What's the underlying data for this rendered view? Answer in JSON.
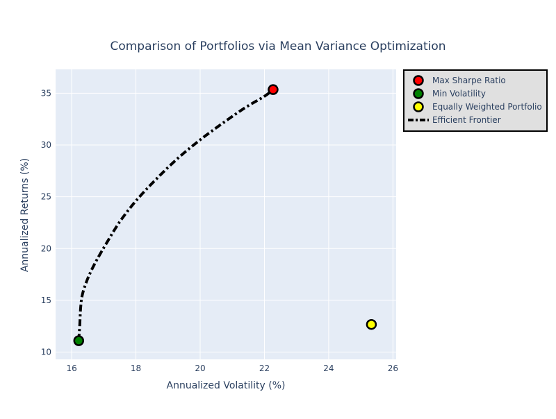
{
  "chart_data": {
    "type": "scatter",
    "title": "Comparison of Portfolios via Mean Variance Optimization",
    "xlabel": "Annualized Volatility (%)",
    "ylabel": "Annualized Returns (%)",
    "xlim": [
      15.5,
      26.1
    ],
    "ylim": [
      9.3,
      37.3
    ],
    "xticks": [
      16,
      18,
      20,
      22,
      24,
      26
    ],
    "yticks": [
      10,
      15,
      20,
      25,
      30,
      35
    ],
    "grid": true,
    "legend_position": "top-right",
    "colors": {
      "plot_background": "#e5ecf6",
      "grid": "#ffffff",
      "text": "#2a3f5f",
      "legend_background": "#e0e0e0",
      "frontier": "#000000"
    },
    "series": [
      {
        "name": "Max Sharpe Ratio",
        "mode": "markers",
        "color": "#ff0000",
        "x": [
          22.27
        ],
        "y": [
          35.35
        ]
      },
      {
        "name": "Min Volatility",
        "mode": "markers",
        "color": "#008000",
        "x": [
          16.22
        ],
        "y": [
          11.1
        ]
      },
      {
        "name": "Equally Weighted Portfolio",
        "mode": "markers",
        "color": "#ffff00",
        "x": [
          25.33
        ],
        "y": [
          12.67
        ]
      },
      {
        "name": "Efficient Frontier",
        "mode": "lines",
        "dash": "dashdot",
        "color": "#000000",
        "x": [
          16.22,
          16.25,
          16.28,
          16.33,
          16.45,
          16.6,
          16.8,
          17.1,
          17.5,
          18.0,
          18.6,
          19.3,
          20.0,
          20.7,
          21.4,
          22.0,
          22.27
        ],
        "y": [
          11.1,
          12.5,
          14.3,
          15.5,
          16.7,
          17.8,
          19.0,
          20.6,
          22.6,
          24.6,
          26.6,
          28.7,
          30.5,
          32.1,
          33.6,
          34.7,
          35.35
        ]
      }
    ]
  }
}
